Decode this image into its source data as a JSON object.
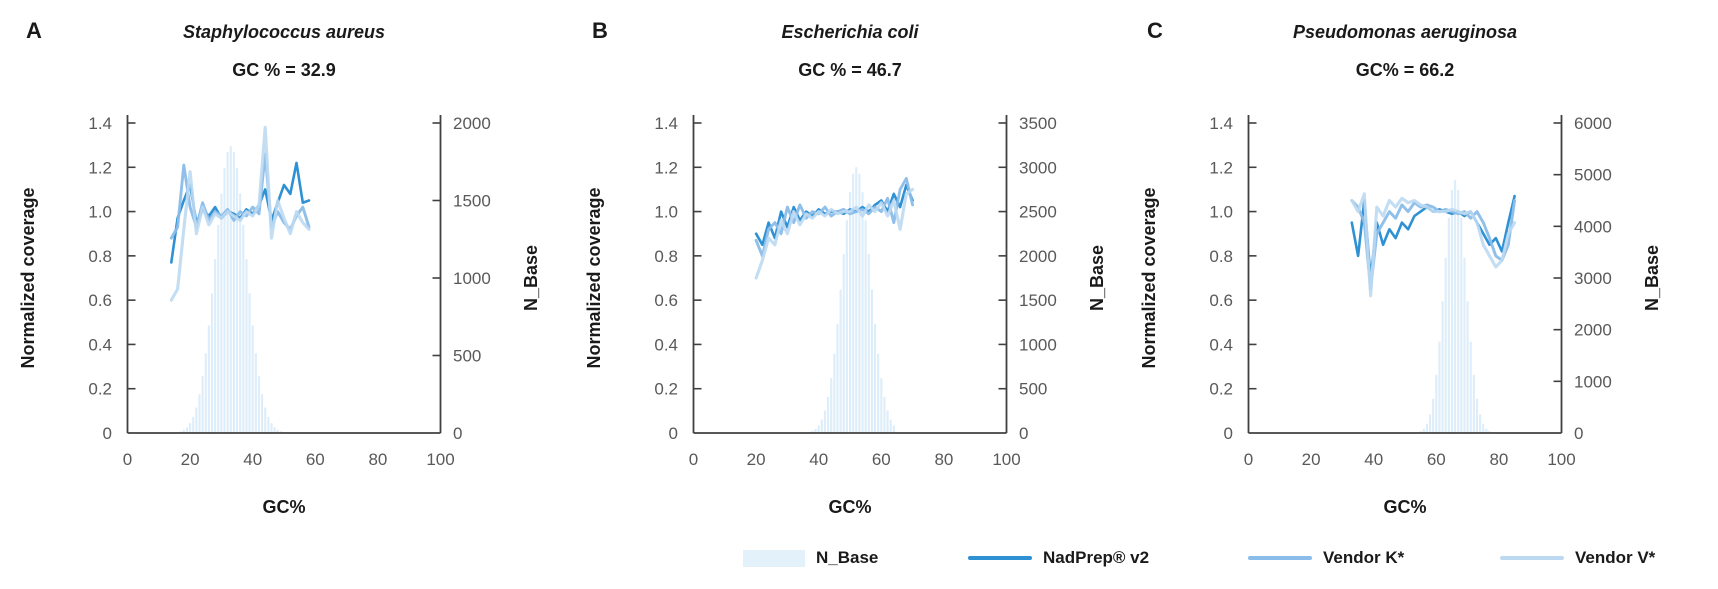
{
  "figure": {
    "background": "#ffffff"
  },
  "colors": {
    "nadprep_v2": "#2e91d4",
    "vendor_k": "#8abde9",
    "vendor_v": "#bdd9f2",
    "n_base_fill": "#ddedf9",
    "axis_line": "#404040",
    "tick_label": "#595959",
    "text": "#1a1a1a"
  },
  "legend": {
    "items": [
      {
        "label": "N_Base",
        "type": "area",
        "color": "#e3f1fb"
      },
      {
        "label": "NadPrep® v2",
        "type": "line",
        "color": "#2e91d4"
      },
      {
        "label": "Vendor K*",
        "type": "line",
        "color": "#8abde9"
      },
      {
        "label": "Vendor V*",
        "type": "line",
        "color": "#bdd9f2"
      }
    ]
  },
  "chart_data": [
    {
      "type": "line",
      "panel_label": "A",
      "title": "Staphylococcus aureus",
      "subtitle": "GC % = 32.9",
      "xlabel": "GC%",
      "ylabel_left": "Normalized coverage",
      "ylabel_right": "N_Base",
      "xlim": [
        0,
        100
      ],
      "xticks": [
        0,
        20,
        40,
        60,
        80,
        100
      ],
      "ylim_left": [
        0,
        1.4
      ],
      "yticks_left": [
        0,
        0.2,
        0.4,
        0.6,
        0.8,
        1.0,
        1.2,
        1.4
      ],
      "ylim_right": [
        0,
        2000
      ],
      "yticks_right": [
        0,
        500,
        1000,
        1500,
        2000
      ],
      "grid": false,
      "histogram": {
        "name": "N_Base",
        "axis": "right",
        "x_start": 16,
        "x_step": 1,
        "values": [
          6,
          11,
          21,
          37,
          63,
          104,
          164,
          250,
          366,
          514,
          694,
          901,
          1122,
          1343,
          1545,
          1708,
          1813,
          1850,
          1813,
          1708,
          1545,
          1343,
          1122,
          901,
          694,
          514,
          366,
          250,
          164,
          104,
          63,
          37,
          21,
          11,
          5,
          2,
          1
        ]
      },
      "x": [
        14,
        16,
        18,
        20,
        22,
        24,
        26,
        28,
        30,
        32,
        34,
        36,
        38,
        40,
        42,
        44,
        46,
        48,
        50,
        52,
        54,
        56,
        58
      ],
      "series": [
        {
          "name": "NadPrep® v2",
          "color_key": "nadprep_v2",
          "y": [
            0.77,
            0.97,
            1.05,
            1.12,
            0.95,
            1.01,
            0.98,
            1.02,
            0.97,
            1.0,
            0.99,
            0.97,
            1.01,
            0.99,
            1.03,
            1.1,
            0.96,
            1.04,
            1.12,
            1.08,
            1.22,
            1.04,
            1.05
          ]
        },
        {
          "name": "Vendor K*",
          "color_key": "vendor_k",
          "y": [
            0.88,
            0.93,
            1.21,
            1.02,
            0.93,
            1.04,
            0.96,
            1.0,
            0.98,
            1.01,
            0.96,
            1.0,
            0.98,
            1.02,
            0.99,
            1.26,
            0.93,
            1.0,
            0.95,
            0.92,
            0.98,
            1.02,
            0.93
          ]
        },
        {
          "name": "Vendor V*",
          "color_key": "vendor_v",
          "y": [
            0.6,
            0.65,
            0.92,
            1.18,
            0.9,
            1.02,
            0.94,
            0.99,
            0.97,
            1.0,
            0.98,
            0.96,
            1.0,
            0.98,
            1.03,
            1.38,
            0.88,
            1.05,
            0.97,
            0.9,
            1.0,
            0.95,
            0.92
          ]
        }
      ]
    },
    {
      "type": "line",
      "panel_label": "B",
      "title": "Escherichia coli",
      "subtitle": "GC % = 46.7",
      "xlabel": "GC%",
      "ylabel_left": "Normalized coverage",
      "ylabel_right": "N_Base",
      "xlim": [
        0,
        100
      ],
      "xticks": [
        0,
        20,
        40,
        60,
        80,
        100
      ],
      "ylim_left": [
        0,
        1.4
      ],
      "yticks_left": [
        0,
        0.2,
        0.4,
        0.6,
        0.8,
        1.0,
        1.2,
        1.4
      ],
      "ylim_right": [
        0,
        3500
      ],
      "yticks_right": [
        0,
        500,
        1000,
        1500,
        2000,
        2500,
        3000,
        3500
      ],
      "grid": false,
      "histogram": {
        "name": "N_Base",
        "axis": "right",
        "x_start": 36,
        "x_step": 1,
        "values": [
          5,
          12,
          24,
          46,
          85,
          151,
          254,
          406,
          618,
          895,
          1233,
          1619,
          2021,
          2402,
          2718,
          2927,
          3000,
          2927,
          2718,
          2402,
          2021,
          1619,
          1233,
          895,
          618,
          406,
          254,
          151,
          85
        ]
      },
      "x": [
        20,
        22,
        24,
        26,
        28,
        30,
        32,
        34,
        36,
        38,
        40,
        42,
        44,
        46,
        48,
        50,
        52,
        54,
        56,
        58,
        60,
        62,
        64,
        66,
        68,
        70
      ],
      "series": [
        {
          "name": "NadPrep® v2",
          "color_key": "nadprep_v2",
          "y": [
            0.9,
            0.85,
            0.95,
            0.88,
            1.0,
            0.93,
            1.02,
            0.96,
            1.0,
            0.98,
            1.01,
            0.99,
            1.0,
            1.0,
            0.99,
            1.01,
            1.0,
            1.02,
            1.0,
            1.03,
            1.05,
            1.0,
            1.08,
            1.02,
            1.12,
            1.05
          ]
        },
        {
          "name": "Vendor K*",
          "color_key": "vendor_k",
          "y": [
            0.87,
            0.8,
            0.92,
            0.95,
            0.9,
            1.02,
            0.95,
            1.03,
            0.97,
            1.0,
            0.99,
            1.02,
            0.98,
            1.0,
            1.01,
            0.99,
            1.0,
            1.01,
            0.99,
            1.02,
            1.0,
            1.06,
            0.95,
            1.1,
            1.15,
            1.03
          ]
        },
        {
          "name": "Vendor V*",
          "color_key": "vendor_v",
          "y": [
            0.7,
            0.78,
            0.88,
            0.85,
            0.96,
            0.9,
            1.0,
            0.94,
            0.99,
            0.97,
            1.0,
            0.98,
            1.01,
            0.99,
            1.0,
            1.0,
            1.02,
            0.98,
            1.03,
            1.0,
            1.04,
            0.98,
            1.05,
            0.92,
            1.08,
            1.1
          ]
        }
      ]
    },
    {
      "type": "line",
      "panel_label": "C",
      "title": "Pseudomonas aeruginosa",
      "subtitle": "GC% = 66.2",
      "xlabel": "GC%",
      "ylabel_left": "Normalized coverage",
      "ylabel_right": "N_Base",
      "xlim": [
        0,
        100
      ],
      "xticks": [
        0,
        20,
        40,
        60,
        80,
        100
      ],
      "ylim_left": [
        0,
        1.4
      ],
      "yticks_left": [
        0,
        0.2,
        0.4,
        0.6,
        0.8,
        1.0,
        1.2,
        1.4
      ],
      "ylim_right": [
        0,
        6000
      ],
      "yticks_right": [
        0,
        1000,
        2000,
        3000,
        4000,
        5000,
        6000
      ],
      "grid": false,
      "histogram": {
        "name": "N_Base",
        "axis": "right",
        "x_start": 54,
        "x_step": 1,
        "values": [
          14,
          35,
          83,
          179,
          360,
          663,
          1127,
          1767,
          2550,
          3394,
          4163,
          4704,
          4900,
          4704,
          4163,
          3394,
          2550,
          1767,
          1127,
          663,
          360,
          179,
          83,
          35,
          14
        ]
      },
      "x": [
        33,
        35,
        37,
        39,
        41,
        43,
        45,
        47,
        49,
        51,
        53,
        55,
        57,
        59,
        61,
        63,
        65,
        67,
        69,
        71,
        73,
        75,
        77,
        79,
        81,
        83,
        85
      ],
      "series": [
        {
          "name": "NadPrep® v2",
          "color_key": "nadprep_v2",
          "y": [
            0.95,
            0.8,
            1.05,
            0.7,
            0.95,
            0.85,
            0.92,
            0.88,
            0.95,
            0.92,
            0.98,
            1.0,
            1.02,
            1.0,
            1.01,
            1.0,
            0.99,
            1.0,
            0.98,
            1.0,
            0.95,
            0.9,
            0.85,
            0.88,
            0.82,
            0.95,
            1.07
          ]
        },
        {
          "name": "Vendor K*",
          "color_key": "vendor_k",
          "y": [
            1.05,
            1.02,
            0.95,
            0.65,
            0.9,
            0.95,
            1.0,
            0.97,
            1.03,
            1.0,
            1.04,
            1.02,
            1.03,
            1.02,
            1.0,
            1.01,
            1.0,
            0.99,
            1.0,
            0.97,
            1.0,
            0.95,
            0.88,
            0.8,
            0.78,
            0.85,
            1.05
          ]
        },
        {
          "name": "Vendor V*",
          "color_key": "vendor_v",
          "y": [
            1.05,
            1.0,
            1.08,
            0.62,
            1.02,
            0.98,
            1.05,
            1.02,
            1.06,
            1.04,
            1.05,
            1.03,
            1.02,
            1.0,
            1.0,
            1.0,
            1.01,
            1.0,
            0.99,
            1.0,
            0.95,
            0.85,
            0.8,
            0.75,
            0.78,
            0.9,
            0.95
          ]
        }
      ]
    }
  ]
}
